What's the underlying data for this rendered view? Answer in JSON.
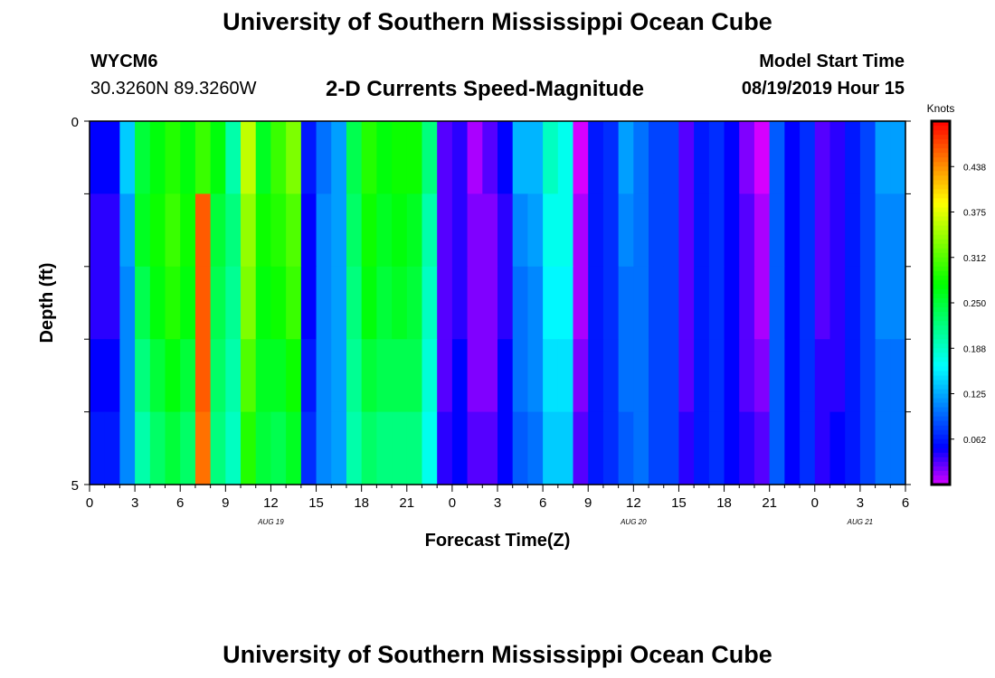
{
  "header": {
    "title": "University of Southern Mississippi Ocean Cube",
    "station_id": "WYCM6",
    "coordinates": "30.3260N 89.3260W",
    "subtitle": "2-D Currents Speed-Magnitude",
    "model_start_label": "Model Start Time",
    "model_start_value": "08/19/2019 Hour 15"
  },
  "footer": {
    "title": "University of Southern Mississippi Ocean Cube"
  },
  "chart_data": {
    "type": "heatmap",
    "title": "2-D Currents Speed-Magnitude",
    "xlabel": "Forecast Time(Z)",
    "ylabel": "Depth (ft)",
    "x_tick_labels": [
      "0",
      "3",
      "6",
      "9",
      "12",
      "15",
      "18",
      "21",
      "0",
      "3",
      "6",
      "9",
      "12",
      "15",
      "18",
      "21",
      "0",
      "3",
      "6"
    ],
    "date_labels": [
      {
        "label": "AUG 19",
        "hours": 12
      },
      {
        "label": "AUG 20",
        "hours": 36
      },
      {
        "label": "AUG 21",
        "hours": 51
      }
    ],
    "y_tick_labels": [
      "0",
      "5"
    ],
    "ylim": [
      0,
      5
    ],
    "x_range_hours": [
      0,
      54
    ],
    "depth_levels": 5,
    "time_steps": 54,
    "colorbar": {
      "unit": "Knots",
      "min": 0,
      "max": 0.5,
      "tick_labels": [
        "0.062",
        "0.125",
        "0.188",
        "0.250",
        "0.312",
        "0.375",
        "0.438"
      ],
      "tick_values": [
        0.0625,
        0.125,
        0.1875,
        0.25,
        0.3125,
        0.375,
        0.4375
      ]
    },
    "speed_knots": [
      [
        0.05,
        0.05,
        0.14,
        0.25,
        0.27,
        0.29,
        0.27,
        0.3,
        0.27,
        0.2,
        0.36,
        0.26,
        0.3,
        0.33,
        0.06,
        0.1,
        0.12,
        0.24,
        0.29,
        0.27,
        0.28,
        0.28,
        0.22,
        0.03,
        0.04,
        0.01,
        0.03,
        0.05,
        0.13,
        0.13,
        0.19,
        0.17,
        0.0,
        0.06,
        0.07,
        0.12,
        0.1,
        0.08,
        0.08,
        0.03,
        0.06,
        0.07,
        0.05,
        0.02,
        0.0,
        0.09,
        0.05,
        0.07,
        0.03,
        0.04,
        0.06,
        0.08,
        0.12,
        0.12
      ],
      [
        0.04,
        0.04,
        0.12,
        0.26,
        0.28,
        0.3,
        0.28,
        0.46,
        0.25,
        0.22,
        0.34,
        0.28,
        0.29,
        0.31,
        0.05,
        0.11,
        0.12,
        0.23,
        0.28,
        0.26,
        0.27,
        0.26,
        0.2,
        0.03,
        0.04,
        0.02,
        0.02,
        0.04,
        0.11,
        0.12,
        0.17,
        0.17,
        0.01,
        0.06,
        0.07,
        0.11,
        0.1,
        0.08,
        0.08,
        0.03,
        0.06,
        0.07,
        0.05,
        0.03,
        0.01,
        0.09,
        0.05,
        0.07,
        0.03,
        0.04,
        0.06,
        0.08,
        0.11,
        0.11
      ],
      [
        0.04,
        0.04,
        0.11,
        0.24,
        0.27,
        0.29,
        0.27,
        0.46,
        0.24,
        0.21,
        0.33,
        0.27,
        0.28,
        0.3,
        0.05,
        0.11,
        0.12,
        0.22,
        0.27,
        0.25,
        0.26,
        0.25,
        0.19,
        0.03,
        0.04,
        0.02,
        0.02,
        0.04,
        0.1,
        0.11,
        0.16,
        0.16,
        0.01,
        0.06,
        0.07,
        0.1,
        0.1,
        0.08,
        0.08,
        0.03,
        0.06,
        0.07,
        0.05,
        0.03,
        0.01,
        0.09,
        0.05,
        0.07,
        0.03,
        0.04,
        0.06,
        0.08,
        0.11,
        0.11
      ],
      [
        0.05,
        0.05,
        0.11,
        0.22,
        0.25,
        0.27,
        0.25,
        0.46,
        0.23,
        0.2,
        0.31,
        0.26,
        0.26,
        0.28,
        0.06,
        0.11,
        0.12,
        0.21,
        0.25,
        0.24,
        0.24,
        0.24,
        0.18,
        0.03,
        0.05,
        0.02,
        0.02,
        0.05,
        0.1,
        0.11,
        0.15,
        0.15,
        0.02,
        0.06,
        0.07,
        0.1,
        0.1,
        0.08,
        0.08,
        0.03,
        0.06,
        0.07,
        0.05,
        0.03,
        0.02,
        0.09,
        0.05,
        0.07,
        0.04,
        0.04,
        0.06,
        0.08,
        0.1,
        0.1
      ],
      [
        0.06,
        0.06,
        0.11,
        0.2,
        0.23,
        0.25,
        0.23,
        0.45,
        0.22,
        0.19,
        0.29,
        0.25,
        0.24,
        0.26,
        0.07,
        0.11,
        0.12,
        0.2,
        0.23,
        0.22,
        0.22,
        0.22,
        0.17,
        0.04,
        0.05,
        0.03,
        0.03,
        0.05,
        0.09,
        0.1,
        0.14,
        0.14,
        0.03,
        0.06,
        0.07,
        0.09,
        0.1,
        0.08,
        0.08,
        0.04,
        0.06,
        0.07,
        0.05,
        0.04,
        0.03,
        0.09,
        0.05,
        0.07,
        0.04,
        0.05,
        0.06,
        0.08,
        0.1,
        0.1
      ]
    ]
  }
}
